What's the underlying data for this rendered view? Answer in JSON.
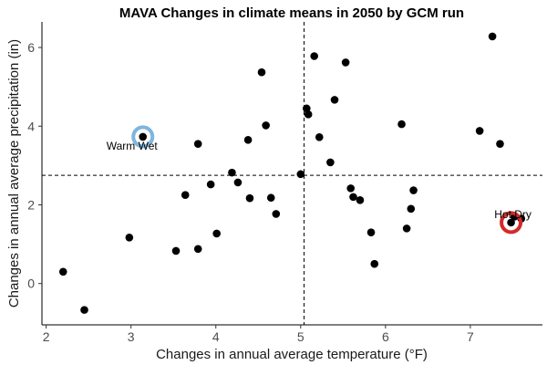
{
  "chart_data": {
    "type": "scatter",
    "title": "MAVA Changes in climate means in 2050 by GCM run",
    "xlabel": "Changes in annual average temperature (°F)",
    "ylabel": "Changes in annual average precipitation (in)",
    "xlim": [
      1.95,
      7.85
    ],
    "ylim": [
      -1.05,
      6.65
    ],
    "xticks": [
      2,
      3,
      4,
      5,
      6,
      7
    ],
    "yticks": [
      0,
      2,
      4,
      6
    ],
    "grid": false,
    "reference_lines": {
      "x": 5.04,
      "y": 2.75
    },
    "points": [
      {
        "x": 2.2,
        "y": 0.3
      },
      {
        "x": 2.45,
        "y": -0.67
      },
      {
        "x": 2.98,
        "y": 1.17
      },
      {
        "x": 3.14,
        "y": 3.73
      },
      {
        "x": 3.53,
        "y": 0.83
      },
      {
        "x": 3.64,
        "y": 2.25
      },
      {
        "x": 3.79,
        "y": 3.55
      },
      {
        "x": 3.79,
        "y": 0.88
      },
      {
        "x": 3.94,
        "y": 2.52
      },
      {
        "x": 4.01,
        "y": 1.27
      },
      {
        "x": 4.19,
        "y": 2.82
      },
      {
        "x": 4.26,
        "y": 2.57
      },
      {
        "x": 4.38,
        "y": 3.65
      },
      {
        "x": 4.4,
        "y": 2.17
      },
      {
        "x": 4.54,
        "y": 5.37
      },
      {
        "x": 4.59,
        "y": 4.02
      },
      {
        "x": 4.65,
        "y": 2.18
      },
      {
        "x": 4.71,
        "y": 1.77
      },
      {
        "x": 5.0,
        "y": 2.78
      },
      {
        "x": 5.07,
        "y": 4.45
      },
      {
        "x": 5.09,
        "y": 4.3
      },
      {
        "x": 5.16,
        "y": 5.78
      },
      {
        "x": 5.22,
        "y": 3.72
      },
      {
        "x": 5.35,
        "y": 3.08
      },
      {
        "x": 5.4,
        "y": 4.67
      },
      {
        "x": 5.53,
        "y": 5.62
      },
      {
        "x": 5.59,
        "y": 2.42
      },
      {
        "x": 5.62,
        "y": 2.2
      },
      {
        "x": 5.7,
        "y": 2.12
      },
      {
        "x": 5.83,
        "y": 1.3
      },
      {
        "x": 5.87,
        "y": 0.5
      },
      {
        "x": 6.19,
        "y": 4.05
      },
      {
        "x": 6.25,
        "y": 1.4
      },
      {
        "x": 6.3,
        "y": 1.9
      },
      {
        "x": 6.33,
        "y": 2.37
      },
      {
        "x": 7.11,
        "y": 3.88
      },
      {
        "x": 7.26,
        "y": 6.28
      },
      {
        "x": 7.35,
        "y": 3.55
      },
      {
        "x": 7.48,
        "y": 1.55
      },
      {
        "x": 7.52,
        "y": 1.7
      },
      {
        "x": 7.6,
        "y": 1.65
      }
    ],
    "annotations": [
      {
        "label": "Warm Wet",
        "x": 3.14,
        "y": 3.73,
        "color": "#7fb5de"
      },
      {
        "label": "Hot Dry",
        "x": 7.48,
        "y": 1.55,
        "color": "#d42a2a"
      }
    ]
  }
}
